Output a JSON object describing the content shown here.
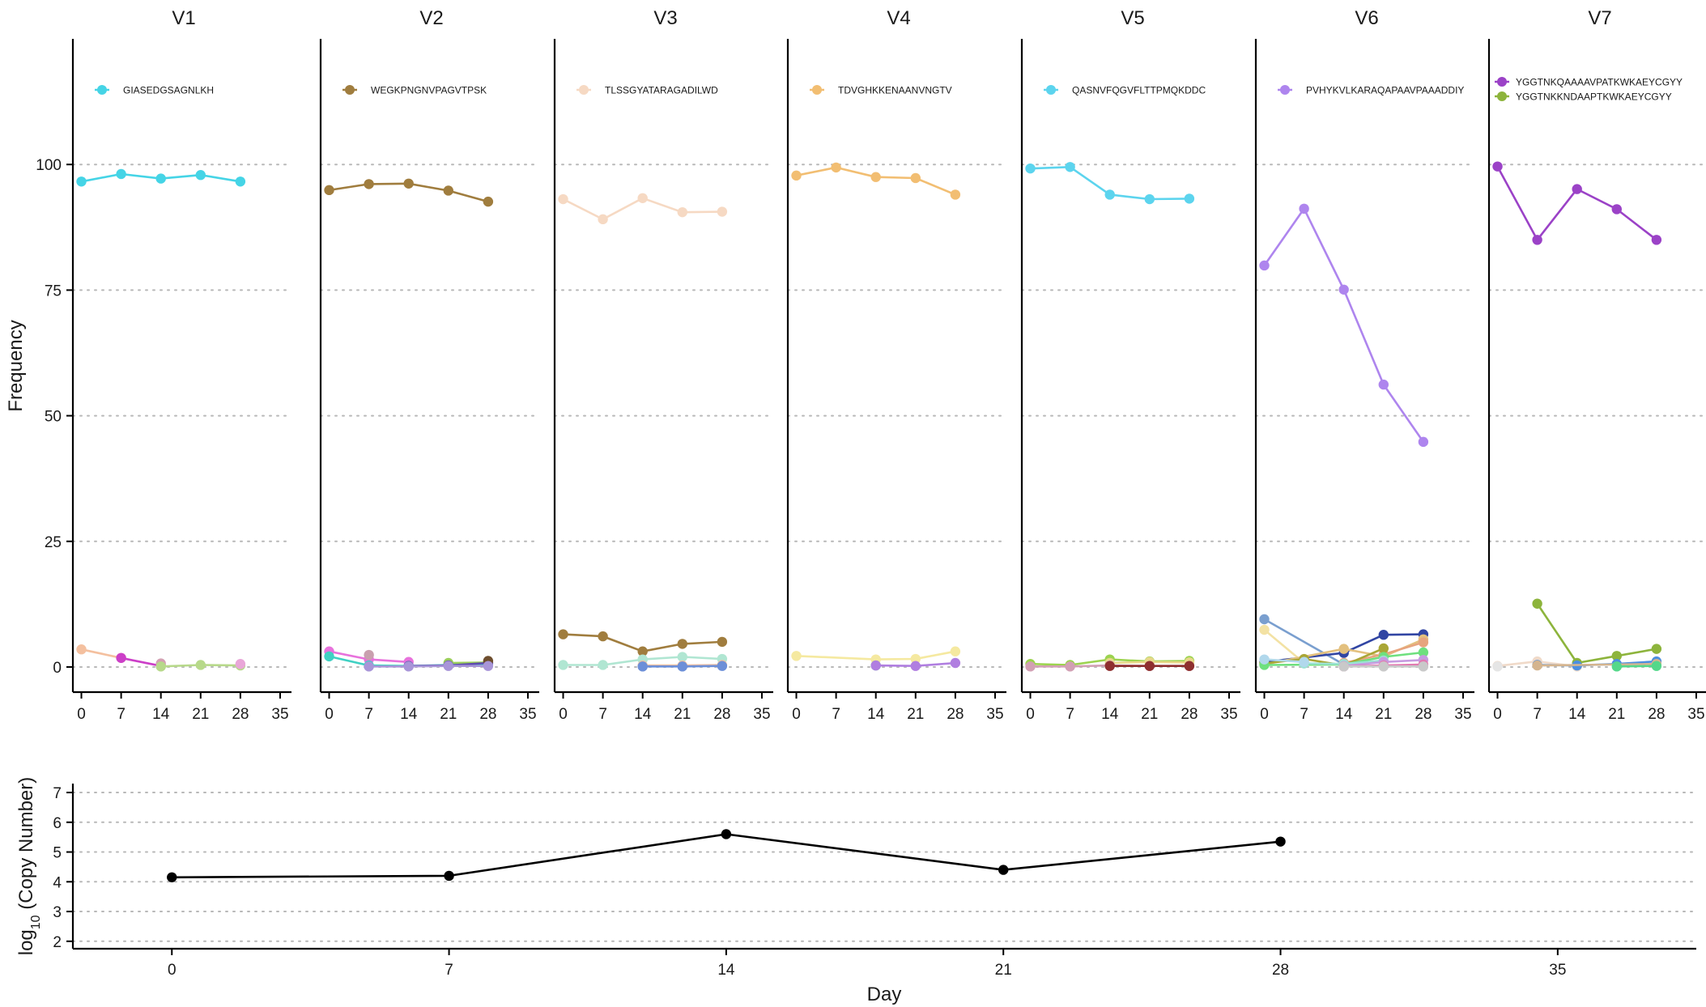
{
  "chart_data": [
    {
      "type": "line",
      "facet": true,
      "ylabel": "Frequency",
      "xlim": [
        -1.5,
        37
      ],
      "ylim": [
        -5,
        125
      ],
      "xticks": [
        0,
        7,
        14,
        21,
        28,
        35
      ],
      "yticks": [
        0,
        25,
        50,
        75,
        100
      ],
      "grid": "horizontal-dotted",
      "legend_placement": "top-left",
      "panels": [
        {
          "title": "V1",
          "legend": [
            {
              "label": "GIASEDGSAGNLKH",
              "color": "#45D4E6"
            }
          ],
          "series": [
            {
              "name": "GIASEDGSAGNLKH",
              "color": "#45D4E6",
              "x": [
                0,
                7,
                14,
                21,
                28
              ],
              "y": [
                96.6,
                98.1,
                97.2,
                97.9,
                96.6
              ]
            },
            {
              "color": "#F4C09F",
              "x": [
                0,
                7
              ],
              "y": [
                3.5,
                1.8
              ]
            },
            {
              "color": "#CC3FC8",
              "x": [
                7,
                14
              ],
              "y": [
                1.8,
                0.2
              ]
            },
            {
              "color": "#D4A0B4",
              "x": [
                14
              ],
              "y": [
                0.7
              ]
            },
            {
              "color": "#B7D98A",
              "x": [
                14,
                21,
                28
              ],
              "y": [
                0.1,
                0.4,
                0.3
              ]
            },
            {
              "color": "#E9A6D8",
              "x": [
                28
              ],
              "y": [
                0.6
              ]
            }
          ]
        },
        {
          "title": "V2",
          "legend": [
            {
              "label": "WEGKPNGNVPAGVTPSK",
              "color": "#A07D3E"
            }
          ],
          "series": [
            {
              "name": "WEGKPNGNVPAGVTPSK",
              "color": "#A07D3E",
              "x": [
                0,
                7,
                14,
                21,
                28
              ],
              "y": [
                94.9,
                96.1,
                96.2,
                94.8,
                92.6
              ]
            },
            {
              "color": "#E872DC",
              "x": [
                0,
                7,
                14
              ],
              "y": [
                3.1,
                1.5,
                1.0
              ]
            },
            {
              "color": "#3FD1C3",
              "x": [
                0,
                7,
                14,
                21,
                28
              ],
              "y": [
                2.1,
                0.3,
                0.2,
                0.4,
                0.6
              ]
            },
            {
              "color": "#C9A0AE",
              "x": [
                7
              ],
              "y": [
                2.4
              ]
            },
            {
              "color": "#9ACD5A",
              "x": [
                21,
                28
              ],
              "y": [
                0.8,
                0.9
              ]
            },
            {
              "color": "#5E4AB0",
              "x": [
                14,
                21,
                28
              ],
              "y": [
                0.2,
                0.3,
                0.8
              ]
            },
            {
              "color": "#6E4E2E",
              "x": [
                28
              ],
              "y": [
                1.2
              ]
            },
            {
              "color": "#A895D8",
              "x": [
                7,
                14,
                21,
                28
              ],
              "y": [
                0.1,
                0.1,
                0.2,
                0.2
              ]
            }
          ]
        },
        {
          "title": "V3",
          "legend": [
            {
              "label": "TLSSGYATARAGADILWD",
              "color": "#F6D9C3"
            }
          ],
          "series": [
            {
              "name": "TLSSGYATARAGADILWD",
              "color": "#F6D9C3",
              "x": [
                0,
                7,
                14,
                21,
                28
              ],
              "y": [
                93.1,
                89.1,
                93.3,
                90.5,
                90.6
              ]
            },
            {
              "color": "#A07D3E",
              "x": [
                0,
                7,
                14,
                21,
                28
              ],
              "y": [
                6.5,
                6.1,
                3.1,
                4.6,
                5.0
              ]
            },
            {
              "color": "#B0E6D2",
              "x": [
                0,
                7,
                14,
                21,
                28
              ],
              "y": [
                0.4,
                0.4,
                1.5,
                2.0,
                1.6
              ]
            },
            {
              "color": "#F1BFA0",
              "x": [
                14,
                21,
                28
              ],
              "y": [
                0.3,
                0.3,
                0.4
              ]
            },
            {
              "color": "#6C8FD8",
              "x": [
                14,
                21,
                28
              ],
              "y": [
                0.1,
                0.1,
                0.2
              ]
            }
          ]
        },
        {
          "title": "V4",
          "legend": [
            {
              "label": "TDVGHKKENAANVNGTV",
              "color": "#F2BE72"
            }
          ],
          "series": [
            {
              "name": "TDVGHKKENAANVNGTV",
              "color": "#F2BE72",
              "x": [
                0,
                7,
                14,
                21,
                28
              ],
              "y": [
                97.8,
                99.4,
                97.5,
                97.3,
                94.0
              ]
            },
            {
              "color": "#F5E9A0",
              "x": [
                0,
                14,
                21,
                28
              ],
              "y": [
                2.2,
                1.5,
                1.6,
                3.1
              ]
            },
            {
              "color": "#48C98E",
              "x": [
                14
              ],
              "y": [
                0.3
              ]
            },
            {
              "color": "#B07EE0",
              "x": [
                14,
                21,
                28
              ],
              "y": [
                0.3,
                0.2,
                0.8
              ]
            }
          ]
        },
        {
          "title": "V5",
          "legend": [
            {
              "label": "QASNVFQGVFLTTPMQKDDC",
              "color": "#5CD4EE"
            }
          ],
          "series": [
            {
              "name": "QASNVFQGVFLTTPMQKDDC",
              "color": "#5CD4EE",
              "x": [
                0,
                7,
                14,
                21,
                28
              ],
              "y": [
                99.2,
                99.5,
                94.0,
                93.1,
                93.2
              ]
            },
            {
              "color": "#9CD34F",
              "x": [
                0,
                7,
                14,
                21,
                28
              ],
              "y": [
                0.6,
                0.4,
                1.5,
                1.1,
                1.2
              ]
            },
            {
              "color": "#E8D88A",
              "x": [
                14,
                21,
                28
              ],
              "y": [
                0.8,
                1.0,
                0.9
              ]
            },
            {
              "color": "#D2A0B4",
              "x": [
                0,
                7,
                14,
                21,
                28
              ],
              "y": [
                0.1,
                0.1,
                0.3,
                0.2,
                0.2
              ]
            },
            {
              "color": "#8E2F2F",
              "x": [
                14,
                21,
                28
              ],
              "y": [
                0.2,
                0.2,
                0.2
              ]
            }
          ]
        },
        {
          "title": "V6",
          "legend": [
            {
              "label": "PVHYKVLKARAQAPAAVPAAADDIY",
              "color": "#AE85EE"
            }
          ],
          "series": [
            {
              "name": "PVHYKVLKARAQAPAAVPAAADDIY",
              "color": "#AE85EE",
              "x": [
                0,
                7,
                14,
                21,
                28
              ],
              "y": [
                79.9,
                91.2,
                75.1,
                56.2,
                44.8
              ]
            },
            {
              "color": "#7A9FCF",
              "x": [
                0,
                14
              ],
              "y": [
                9.5,
                0.5
              ]
            },
            {
              "color": "#F3E2A4",
              "x": [
                0,
                7
              ],
              "y": [
                7.4,
                0.8
              ]
            },
            {
              "color": "#3145A3",
              "x": [
                0,
                14,
                21,
                28
              ],
              "y": [
                1.0,
                2.8,
                6.4,
                6.5
              ]
            },
            {
              "color": "#E3C07E",
              "x": [
                0,
                14,
                21,
                28
              ],
              "y": [
                0.5,
                3.6,
                2.1,
                5.5
              ]
            },
            {
              "color": "#E7A47E",
              "x": [
                14,
                21,
                28
              ],
              "y": [
                0.8,
                2.5,
                4.9
              ]
            },
            {
              "color": "#A9A636",
              "x": [
                0,
                7,
                14,
                21
              ],
              "y": [
                0.7,
                1.6,
                0.3,
                3.7
              ]
            },
            {
              "color": "#6EE07E",
              "x": [
                0,
                14,
                21,
                28
              ],
              "y": [
                0.4,
                0.5,
                2.0,
                2.9
              ]
            },
            {
              "color": "#9BE2D4",
              "x": [
                7,
                14,
                21
              ],
              "y": [
                0.7,
                0.6,
                1.3
              ]
            },
            {
              "color": "#C79BE0",
              "x": [
                14,
                21,
                28
              ],
              "y": [
                0.2,
                1.0,
                1.4
              ]
            },
            {
              "color": "#B1D8EC",
              "x": [
                0,
                7
              ],
              "y": [
                1.5,
                1.0
              ]
            },
            {
              "color": "#E17BB1",
              "x": [
                14,
                21,
                28
              ],
              "y": [
                0.1,
                0.3,
                0.5
              ]
            },
            {
              "color": "#C9C9C9",
              "x": [
                14,
                21,
                28
              ],
              "y": [
                0.1,
                0.1,
                0.1
              ]
            }
          ]
        },
        {
          "title": "V7",
          "legend": [
            {
              "label": "YGGTNKQAAAAVPATKWKAEYCGYY",
              "color": "#9B42C7"
            },
            {
              "label": "YGGTNKKNDAAPTKWKAEYCGYY",
              "color": "#8DB43C"
            }
          ],
          "series": [
            {
              "name": "YGGTNKQAAAAVPATKWKAEYCGYY",
              "color": "#9B42C7",
              "x": [
                0,
                7,
                14,
                21,
                28
              ],
              "y": [
                99.6,
                85.0,
                95.1,
                91.1,
                85.0
              ]
            },
            {
              "name": "YGGTNKKNDAAPTKWKAEYCGYY",
              "color": "#8DB43C",
              "x": [
                7,
                14,
                21,
                28
              ],
              "y": [
                12.6,
                0.8,
                2.2,
                3.6
              ]
            },
            {
              "color": "#F0DAC9",
              "x": [
                0,
                7,
                14
              ],
              "y": [
                0.2,
                1.1,
                0.1
              ]
            },
            {
              "color": "#4C8FE0",
              "x": [
                7,
                14,
                21,
                28
              ],
              "y": [
                0.4,
                0.3,
                0.6,
                1.1
              ]
            },
            {
              "color": "#D4B48E",
              "x": [
                7,
                28
              ],
              "y": [
                0.3,
                0.6
              ]
            },
            {
              "color": "#E5E5E5",
              "x": [
                0
              ],
              "y": [
                0.1
              ]
            },
            {
              "color": "#54D88A",
              "x": [
                21,
                28
              ],
              "y": [
                0.1,
                0.2
              ]
            }
          ]
        }
      ]
    },
    {
      "type": "line",
      "xlabel": "Day",
      "ylabel": "log10 (Copy Number)",
      "xlim": [
        -2.5,
        38.5
      ],
      "ylim": [
        1.75,
        7.3
      ],
      "xticks": [
        0,
        7,
        14,
        21,
        28,
        35
      ],
      "yticks": [
        2,
        3,
        4,
        5,
        6,
        7
      ],
      "grid": "horizontal-dotted",
      "series": [
        {
          "color": "#000000",
          "x": [
            0,
            7,
            14,
            21,
            28
          ],
          "y": [
            4.15,
            4.2,
            5.6,
            4.4,
            5.35
          ]
        }
      ]
    }
  ]
}
